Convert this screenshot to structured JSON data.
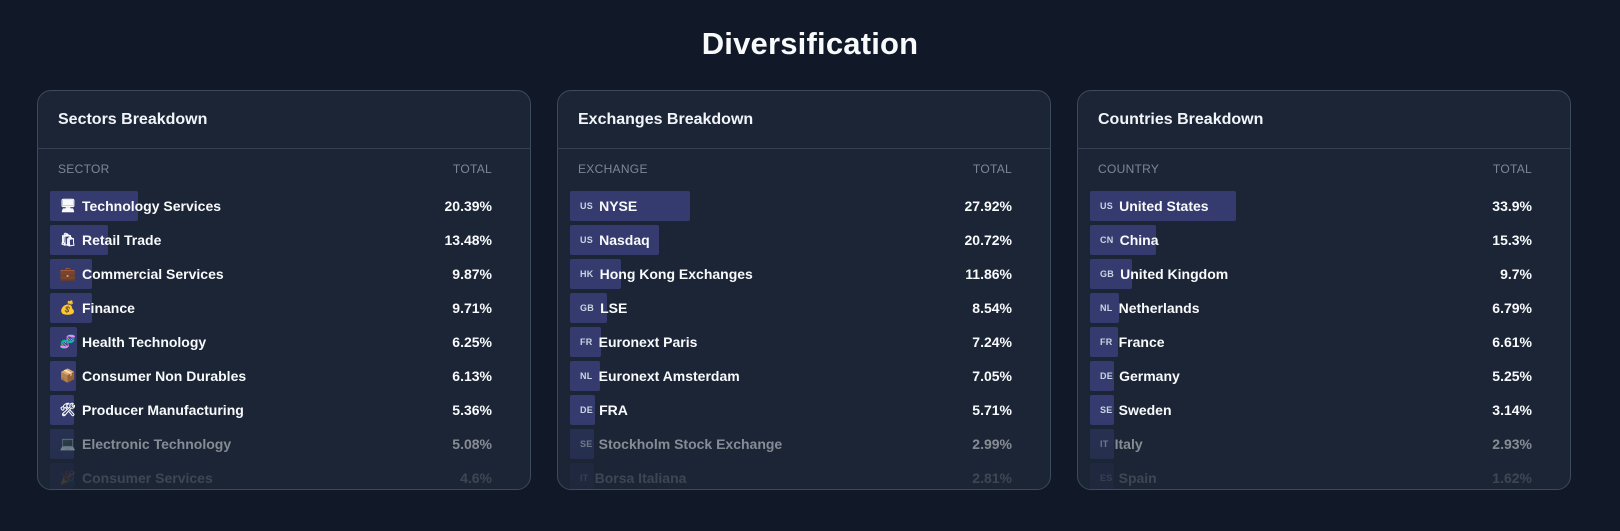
{
  "page": {
    "title": "Diversification"
  },
  "colors": {
    "background": "#111827",
    "card": "#1c2535",
    "bar": "#353b6e",
    "border": "#3b4a5c"
  },
  "cards": [
    {
      "title": "Sectors Breakdown",
      "col_label": "SECTOR",
      "col_total": "TOTAL",
      "rows": [
        {
          "icon": "desktop-icon",
          "glyph": "🖥",
          "label": "Technology Services",
          "value": "20.39%",
          "share": 20.39
        },
        {
          "icon": "shopping-icon",
          "glyph": "🛍",
          "label": "Retail Trade",
          "value": "13.48%",
          "share": 13.48
        },
        {
          "icon": "briefcase-icon",
          "glyph": "💼",
          "label": "Commercial Services",
          "value": "9.87%",
          "share": 9.87
        },
        {
          "icon": "money-bag-icon",
          "glyph": "💰",
          "label": "Finance",
          "value": "9.71%",
          "share": 9.71
        },
        {
          "icon": "dna-icon",
          "glyph": "🧬",
          "label": "Health Technology",
          "value": "6.25%",
          "share": 6.25
        },
        {
          "icon": "package-icon",
          "glyph": "📦",
          "label": "Consumer Non Durables",
          "value": "6.13%",
          "share": 6.13
        },
        {
          "icon": "tools-icon",
          "glyph": "🛠",
          "label": "Producer Manufacturing",
          "value": "5.36%",
          "share": 5.36
        },
        {
          "icon": "laptop-icon",
          "glyph": "💻",
          "label": "Electronic Technology",
          "value": "5.08%",
          "share": 5.08
        },
        {
          "icon": "party-icon",
          "glyph": "🎉",
          "label": "Consumer Services",
          "value": "4.6%",
          "share": 4.6
        }
      ]
    },
    {
      "title": "Exchanges Breakdown",
      "col_label": "EXCHANGE",
      "col_total": "TOTAL",
      "rows": [
        {
          "code": "US",
          "label": "NYSE",
          "value": "27.92%",
          "share": 27.92
        },
        {
          "code": "US",
          "label": "Nasdaq",
          "value": "20.72%",
          "share": 20.72
        },
        {
          "code": "HK",
          "label": "Hong Kong Exchanges",
          "value": "11.86%",
          "share": 11.86
        },
        {
          "code": "GB",
          "label": "LSE",
          "value": "8.54%",
          "share": 8.54
        },
        {
          "code": "FR",
          "label": "Euronext Paris",
          "value": "7.24%",
          "share": 7.24
        },
        {
          "code": "NL",
          "label": "Euronext Amsterdam",
          "value": "7.05%",
          "share": 7.05
        },
        {
          "code": "DE",
          "label": "FRA",
          "value": "5.71%",
          "share": 5.71
        },
        {
          "code": "SE",
          "label": "Stockholm Stock Exchange",
          "value": "2.99%",
          "share": 2.99
        },
        {
          "code": "IT",
          "label": "Borsa Italiana",
          "value": "2.81%",
          "share": 2.81
        }
      ]
    },
    {
      "title": "Countries Breakdown",
      "col_label": "COUNTRY",
      "col_total": "TOTAL",
      "rows": [
        {
          "code": "US",
          "label": "United States",
          "value": "33.9%",
          "share": 33.9
        },
        {
          "code": "CN",
          "label": "China",
          "value": "15.3%",
          "share": 15.3
        },
        {
          "code": "GB",
          "label": "United Kingdom",
          "value": "9.7%",
          "share": 9.7
        },
        {
          "code": "NL",
          "label": "Netherlands",
          "value": "6.79%",
          "share": 6.79
        },
        {
          "code": "FR",
          "label": "France",
          "value": "6.61%",
          "share": 6.61
        },
        {
          "code": "DE",
          "label": "Germany",
          "value": "5.25%",
          "share": 5.25
        },
        {
          "code": "SE",
          "label": "Sweden",
          "value": "3.14%",
          "share": 3.14
        },
        {
          "code": "IT",
          "label": "Italy",
          "value": "2.93%",
          "share": 2.93
        },
        {
          "code": "ES",
          "label": "Spain",
          "value": "1.62%",
          "share": 1.62
        }
      ]
    }
  ]
}
